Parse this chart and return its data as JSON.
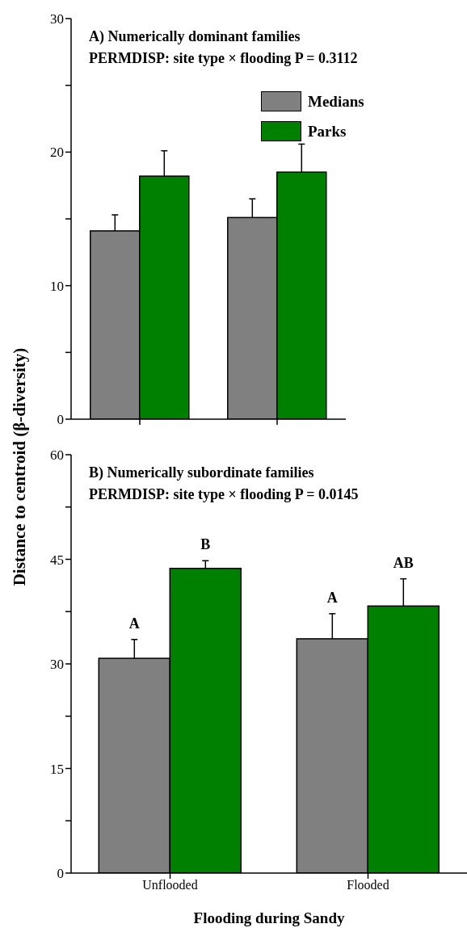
{
  "chart_data": [
    {
      "type": "bar",
      "title": "A) Numerically dominant families",
      "subtitle": "PERMDISP: site type × flooding P = 0.3112",
      "ylabel": "Distance to centroid (β-diversity)",
      "categories": [
        null,
        null
      ],
      "series": [
        {
          "name": "Medians",
          "color": "#808080",
          "values": [
            14.1,
            15.1
          ],
          "errors": [
            1.2,
            1.4
          ]
        },
        {
          "name": "Parks",
          "color": "#008000",
          "values": [
            18.2,
            18.5
          ],
          "errors": [
            1.9,
            2.1
          ]
        }
      ],
      "ylim": [
        0,
        30
      ],
      "yticks": [
        0,
        {
          "value": 5,
          "label": null
        },
        10,
        {
          "value": 15,
          "label": null
        },
        20,
        {
          "value": 25,
          "label": null
        },
        30
      ],
      "tick_labels": "y",
      "grid": false,
      "legend": "top right"
    },
    {
      "type": "bar",
      "title": "B) Numerically subordinate families",
      "subtitle": "PERMDISP: site type × flooding P = 0.0145",
      "xlabel": "Flooding during Sandy",
      "categories": [
        "Unflooded",
        "Flooded"
      ],
      "series": [
        {
          "color": "#808080",
          "values": [
            30.8,
            33.6
          ],
          "errors": [
            2.7,
            3.6
          ]
        },
        {
          "color": "#008000",
          "values": [
            43.7,
            38.3
          ],
          "errors": [
            1.1,
            3.9
          ]
        }
      ],
      "ylim": [
        0,
        60
      ],
      "yticks": [
        0,
        {
          "value": 7.5,
          "label": null
        },
        15,
        {
          "value": 22.5,
          "label": null
        },
        30,
        {
          "value": 37.5,
          "label": null
        },
        45,
        {
          "value": 52.5,
          "label": null
        },
        60
      ],
      "grid": false,
      "legend": false,
      "annotations": [
        "A",
        "B",
        "A",
        "AB"
      ]
    }
  ]
}
